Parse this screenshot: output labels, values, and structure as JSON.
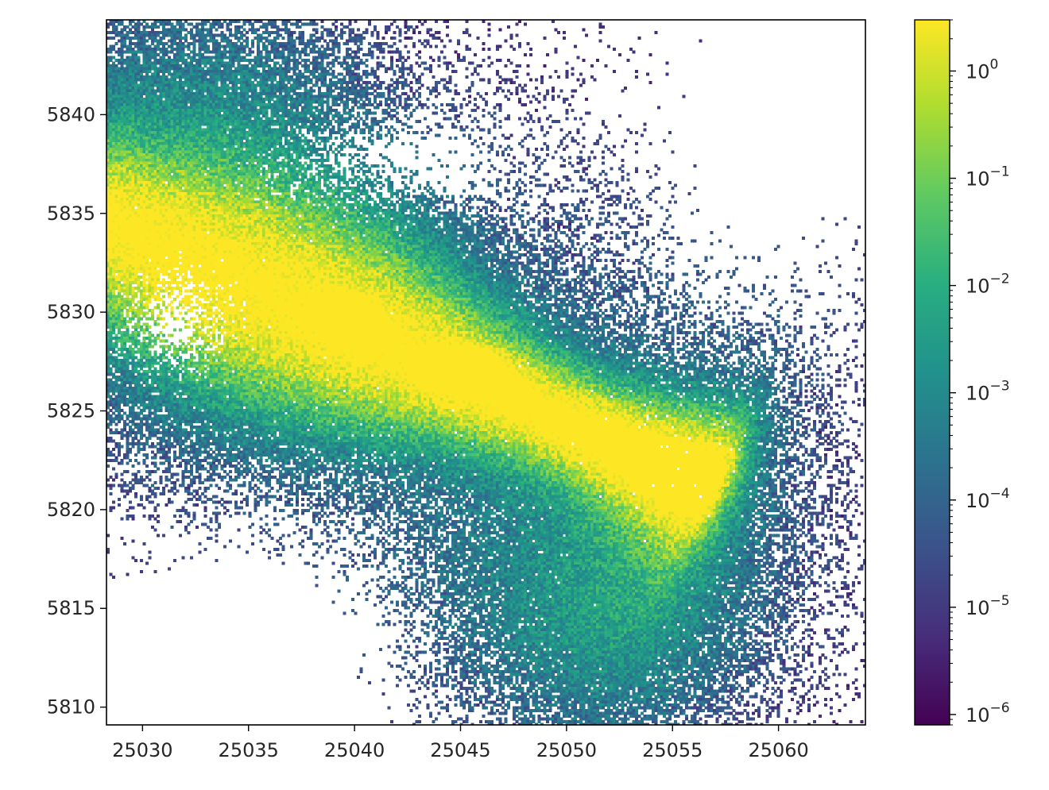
{
  "chart_data": {
    "type": "heatmap",
    "title": "",
    "xlabel": "",
    "ylabel": "",
    "xlim": [
      25028.3,
      25064.1
    ],
    "ylim": [
      5809.1,
      5844.8
    ],
    "x_ticks": [
      {
        "value": 25030,
        "label": "25030"
      },
      {
        "value": 25035,
        "label": "25035"
      },
      {
        "value": 25040,
        "label": "25040"
      },
      {
        "value": 25045,
        "label": "25045"
      },
      {
        "value": 25050,
        "label": "25050"
      },
      {
        "value": 25055,
        "label": "25055"
      },
      {
        "value": 25060,
        "label": "25060"
      }
    ],
    "y_ticks": [
      {
        "value": 5810,
        "label": "5810"
      },
      {
        "value": 5815,
        "label": "5815"
      },
      {
        "value": 5820,
        "label": "5820"
      },
      {
        "value": 5825,
        "label": "5825"
      },
      {
        "value": 5830,
        "label": "5830"
      },
      {
        "value": 5835,
        "label": "5835"
      },
      {
        "value": 5840,
        "label": "5840"
      }
    ],
    "colorbar": {
      "scale": "log",
      "colormap": "viridis",
      "range": [
        8e-07,
        3.0
      ],
      "ticks": [
        {
          "exponent": -6,
          "base": "10",
          "exp": "−6"
        },
        {
          "exponent": -5,
          "base": "10",
          "exp": "−5"
        },
        {
          "exponent": -4,
          "base": "10",
          "exp": "−4"
        },
        {
          "exponent": -3,
          "base": "10",
          "exp": "−3"
        },
        {
          "exponent": -2,
          "base": "10",
          "exp": "−2"
        },
        {
          "exponent": -1,
          "base": "10",
          "exp": "−1"
        },
        {
          "exponent": 0,
          "base": "10",
          "exp": "0"
        }
      ]
    },
    "grid": false,
    "structure": {
      "description_values": "log-density field; dense band runs from (25028, 5835) to (25057, 5821) peaking near 2.0",
      "empty_cells_value": null
    }
  }
}
